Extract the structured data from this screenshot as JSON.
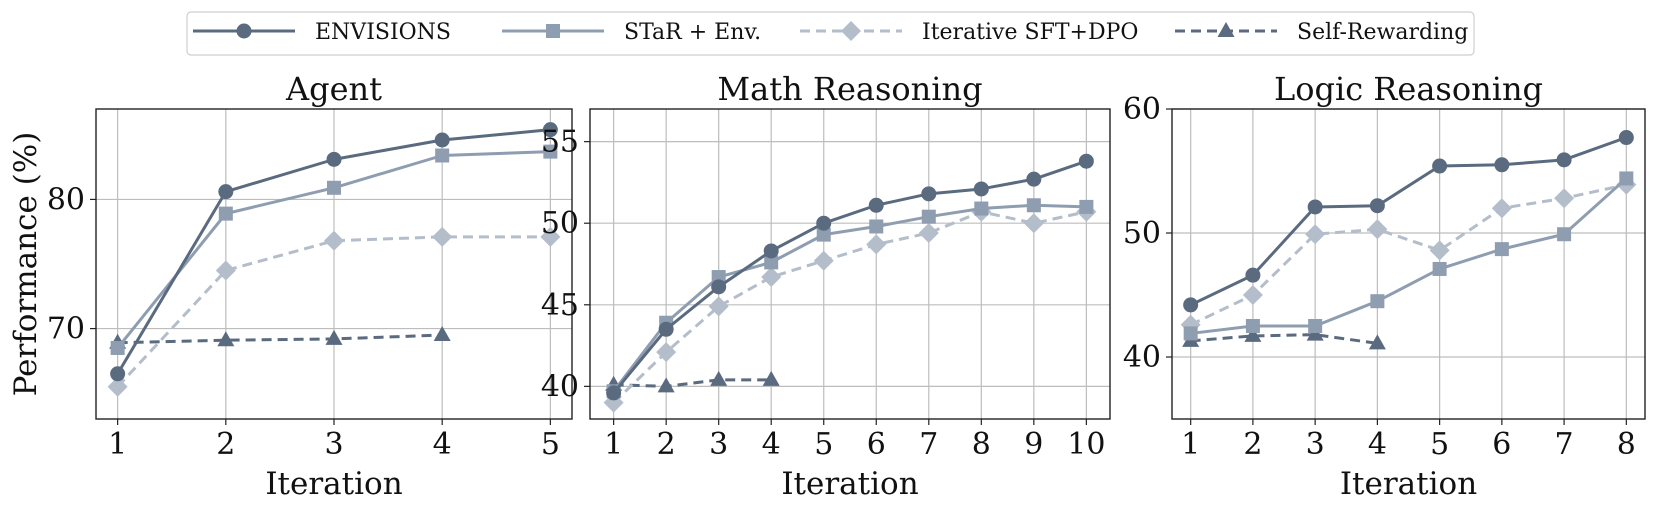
{
  "chart_data": [
    {
      "type": "line",
      "title": "Agent",
      "xlabel": "Iteration",
      "ylabel": "Performance (%)",
      "x": [
        1,
        2,
        3,
        4,
        5
      ],
      "xlim": [
        0.8,
        5.2
      ],
      "ylim": [
        63,
        87
      ],
      "yticks": [
        70,
        80
      ],
      "grid": true,
      "series": [
        {
          "name": "ENVISIONS",
          "values": [
            66.5,
            80.6,
            83.1,
            84.6,
            85.4
          ]
        },
        {
          "name": "STaR + Env.",
          "values": [
            68.5,
            78.9,
            80.9,
            83.4,
            83.7
          ]
        },
        {
          "name": "Iterative SFT+DPO",
          "values": [
            65.5,
            74.5,
            76.8,
            77.1,
            77.1
          ]
        },
        {
          "name": "Self-Rewarding",
          "values": [
            68.9,
            69.1,
            69.2,
            69.5,
            null
          ]
        }
      ]
    },
    {
      "type": "line",
      "title": "Math Reasoning",
      "xlabel": "Iteration",
      "ylabel": "",
      "x": [
        1,
        2,
        3,
        4,
        5,
        6,
        7,
        8,
        9,
        10
      ],
      "xlim": [
        0.55,
        10.45
      ],
      "ylim": [
        38,
        57
      ],
      "yticks": [
        40,
        45,
        50,
        55
      ],
      "grid": true,
      "series": [
        {
          "name": "ENVISIONS",
          "values": [
            39.6,
            43.5,
            46.1,
            48.3,
            50.0,
            51.1,
            51.8,
            52.1,
            52.7,
            53.8
          ]
        },
        {
          "name": "STaR + Env.",
          "values": [
            39.7,
            43.9,
            46.7,
            47.6,
            49.3,
            49.8,
            50.4,
            50.9,
            51.1,
            51.0
          ]
        },
        {
          "name": "Iterative SFT+DPO",
          "values": [
            39.0,
            42.1,
            44.9,
            46.7,
            47.7,
            48.7,
            49.4,
            50.7,
            50.0,
            50.7
          ]
        },
        {
          "name": "Self-Rewarding",
          "values": [
            40.1,
            40.0,
            40.4,
            40.4,
            null,
            null,
            null,
            null,
            null,
            null
          ]
        }
      ]
    },
    {
      "type": "line",
      "title": "Logic Reasoning",
      "xlabel": "Iteration",
      "ylabel": "",
      "x": [
        1,
        2,
        3,
        4,
        5,
        6,
        7,
        8
      ],
      "xlim": [
        0.7,
        8.3
      ],
      "ylim": [
        35,
        60
      ],
      "yticks": [
        40,
        50,
        60
      ],
      "grid": true,
      "series": [
        {
          "name": "ENVISIONS",
          "values": [
            44.2,
            46.6,
            52.1,
            52.2,
            55.4,
            55.5,
            55.9,
            57.7
          ]
        },
        {
          "name": "STaR + Env.",
          "values": [
            41.9,
            42.5,
            42.5,
            44.5,
            47.1,
            48.7,
            49.9,
            54.4
          ]
        },
        {
          "name": "Iterative SFT+DPO",
          "values": [
            42.6,
            45.0,
            49.9,
            50.3,
            48.6,
            52.0,
            52.8,
            53.9
          ]
        },
        {
          "name": "Self-Rewarding",
          "values": [
            41.3,
            41.7,
            41.8,
            41.1,
            null,
            null,
            null,
            null
          ]
        }
      ]
    }
  ],
  "legend": {
    "placement": "top-center",
    "items": [
      {
        "label": "ENVISIONS",
        "marker": "circle",
        "dash": "solid",
        "color": "#5a6a7f"
      },
      {
        "label": "STaR + Env.",
        "marker": "square",
        "dash": "solid",
        "color": "#8e9db0"
      },
      {
        "label": "Iterative SFT+DPO",
        "marker": "diamond",
        "dash": "dashed",
        "color": "#b4bdca"
      },
      {
        "label": "Self-Rewarding",
        "marker": "triangle",
        "dash": "dashed",
        "color": "#5a6a7f"
      }
    ]
  }
}
